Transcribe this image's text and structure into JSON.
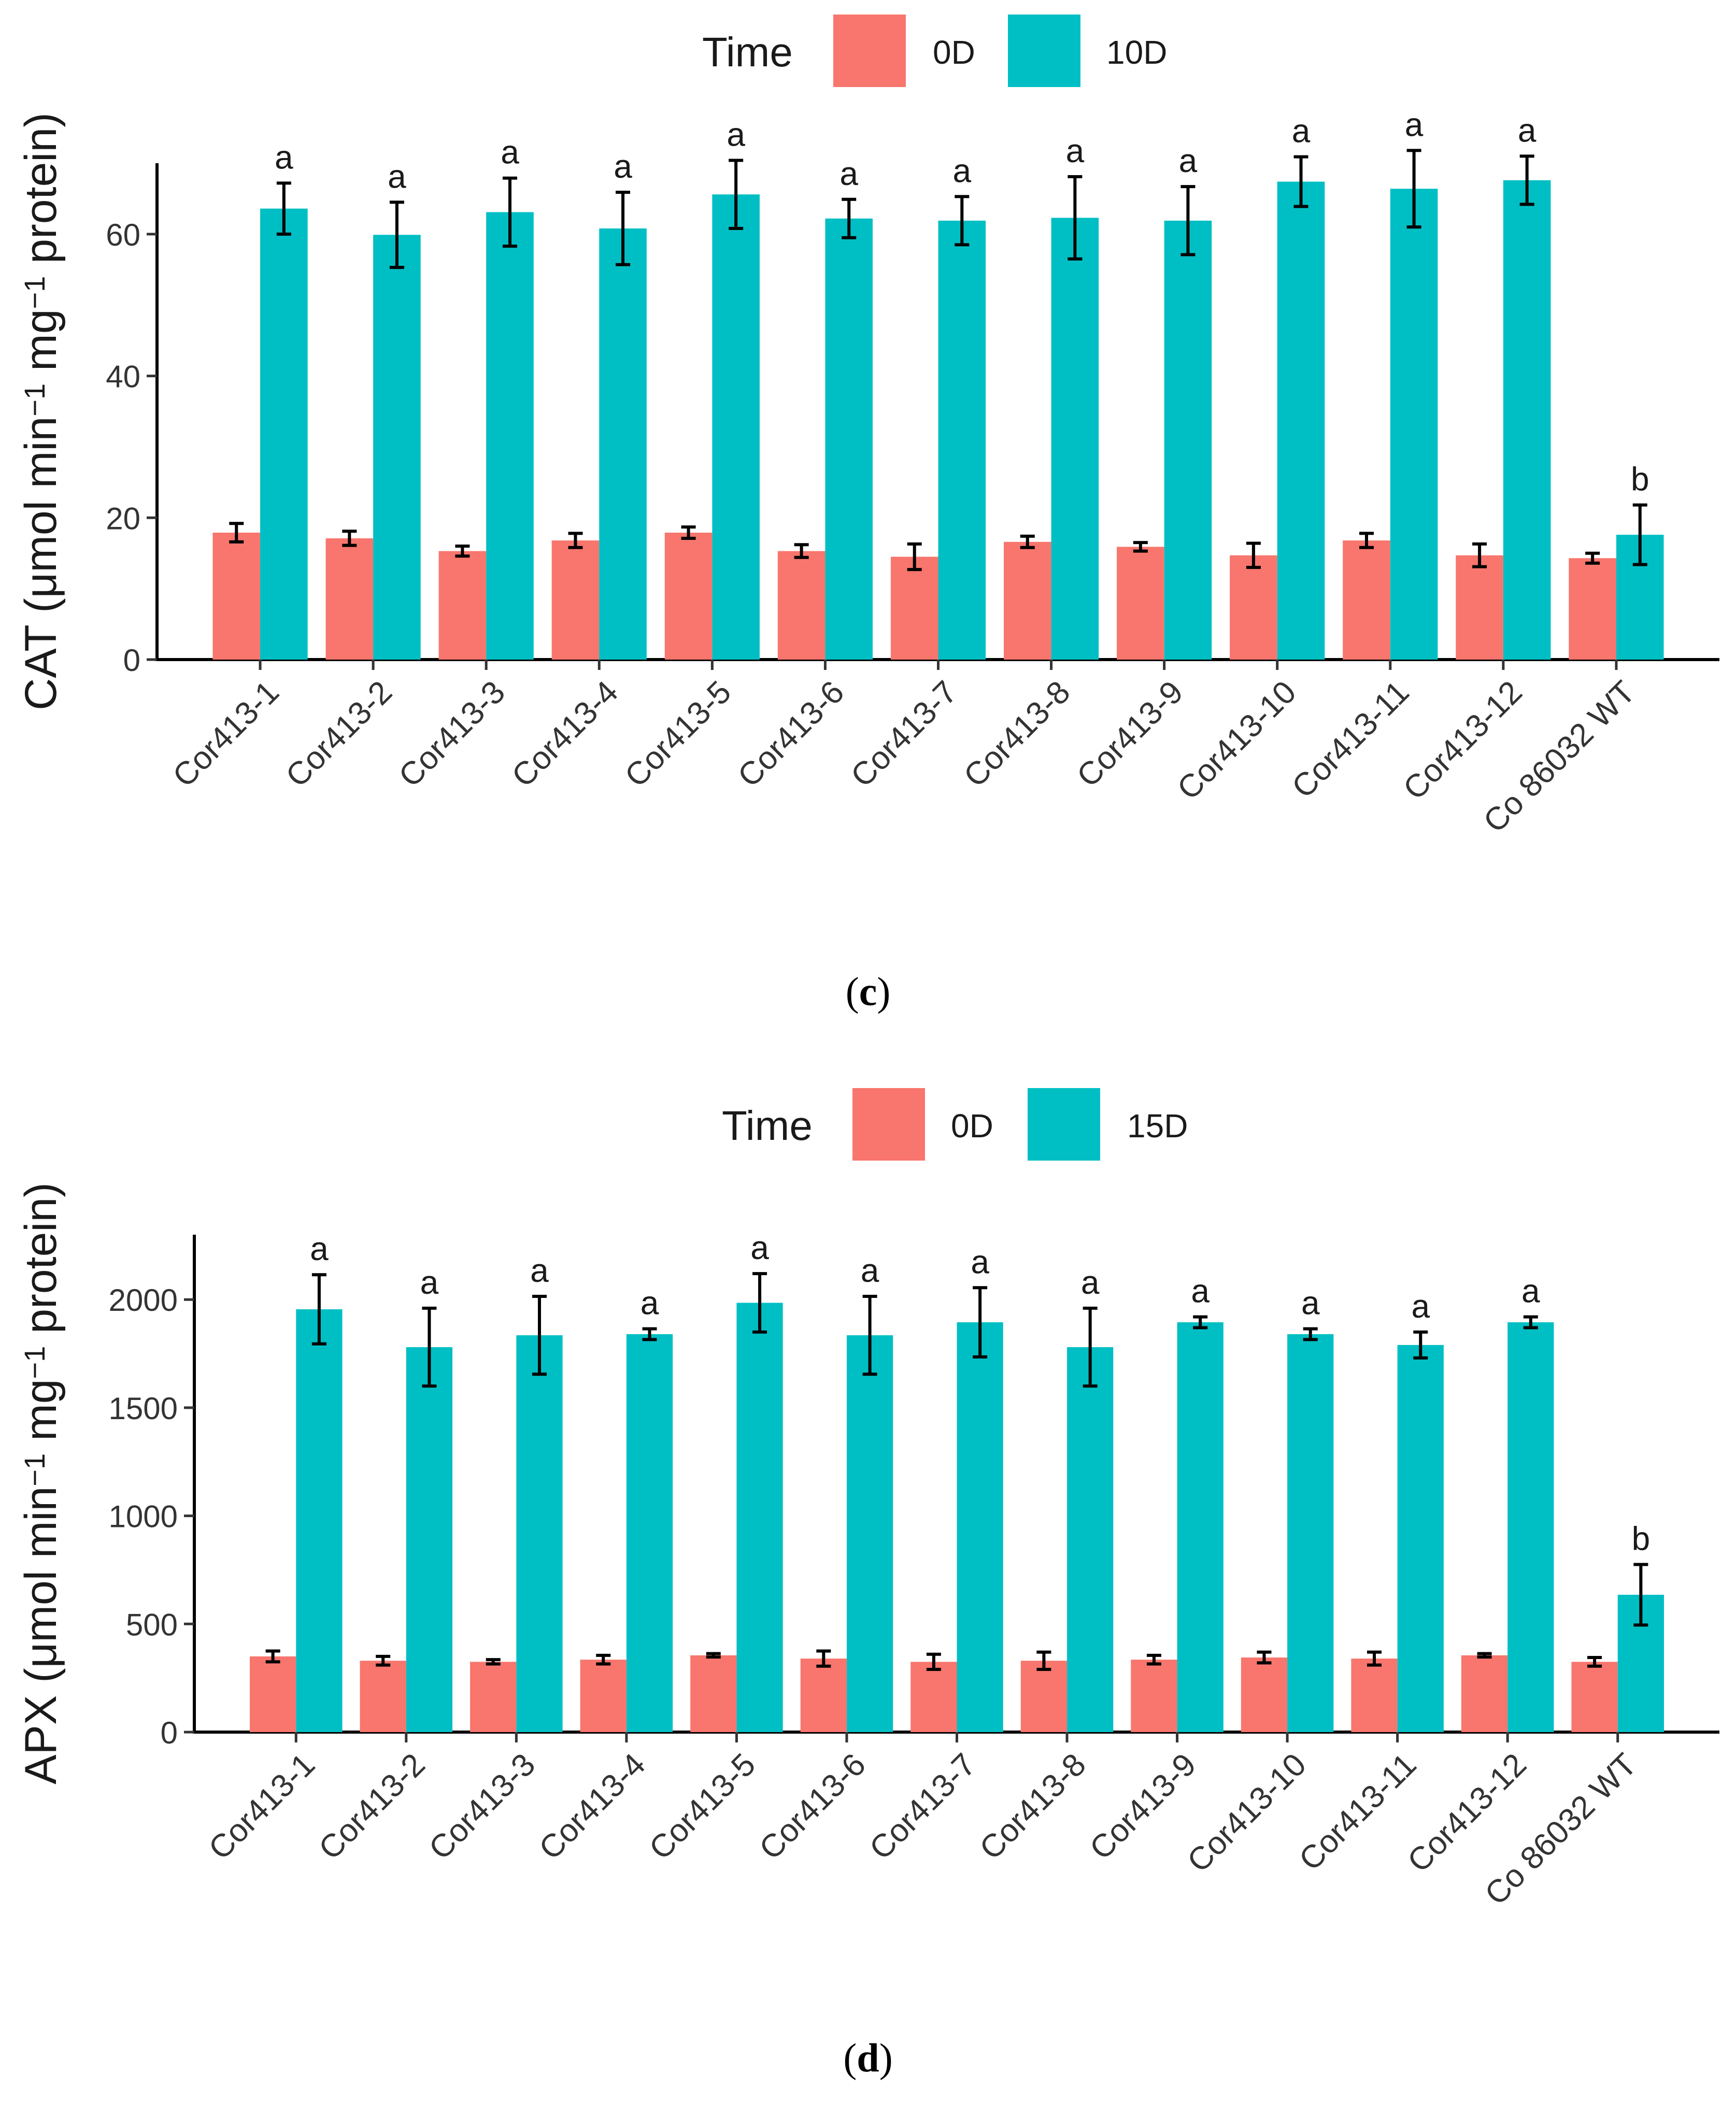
{
  "chart_data": [
    {
      "type": "bar",
      "panel_label": "(c)",
      "panel_letter": "c",
      "legend": {
        "title": "Time",
        "position": "top"
      },
      "ylabel": {
        "base": "CAT (μmol min",
        "sup1": "−1",
        "mid": " mg",
        "sup2": "−1",
        "end": " protein)"
      },
      "xlabel": "",
      "ylim": [
        0,
        70
      ],
      "yticks": [
        0,
        20,
        40,
        60
      ],
      "categories": [
        "Cor413-1",
        "Cor413-2",
        "Cor413-3",
        "Cor413-4",
        "Cor413-5",
        "Cor413-6",
        "Cor413-7",
        "Cor413-8",
        "Cor413-9",
        "Cor413-10",
        "Cor413-11",
        "Cor413-12",
        "Co 86032 WT"
      ],
      "series": [
        {
          "name": "0D",
          "color": "#F8766D",
          "values": [
            17.9,
            17.1,
            15.3,
            16.8,
            17.9,
            15.3,
            14.5,
            16.6,
            15.9,
            14.7,
            16.8,
            14.7,
            14.3
          ],
          "errors": [
            1.3,
            1.0,
            0.7,
            1.0,
            0.8,
            0.9,
            1.8,
            0.8,
            0.6,
            1.7,
            1.0,
            1.6,
            0.7
          ]
        },
        {
          "name": "10D",
          "color": "#00BFC4",
          "values": [
            63.6,
            59.9,
            63.1,
            60.8,
            65.6,
            62.2,
            61.9,
            62.3,
            61.9,
            67.4,
            66.4,
            67.6,
            17.6
          ],
          "errors": [
            3.6,
            4.6,
            4.8,
            5.1,
            4.8,
            2.7,
            3.4,
            5.8,
            4.8,
            3.5,
            5.4,
            3.4,
            4.2
          ]
        }
      ],
      "significance": [
        "a",
        "a",
        "a",
        "a",
        "a",
        "a",
        "a",
        "a",
        "a",
        "a",
        "a",
        "a",
        "b"
      ]
    },
    {
      "type": "bar",
      "panel_label": "(d)",
      "panel_letter": "d",
      "legend": {
        "title": "Time",
        "position": "top"
      },
      "ylabel": {
        "base": "APX (μmol min",
        "sup1": "−1",
        "mid": " mg",
        "sup2": "−1",
        "end": " protein)"
      },
      "xlabel": "",
      "ylim": [
        0,
        2300
      ],
      "yticks": [
        0,
        500,
        1000,
        1500,
        2000
      ],
      "categories": [
        "Cor413-1",
        "Cor413-2",
        "Cor413-3",
        "Cor413-4",
        "Cor413-5",
        "Cor413-6",
        "Cor413-7",
        "Cor413-8",
        "Cor413-9",
        "Cor413-10",
        "Cor413-11",
        "Cor413-12",
        "Co 86032 WT"
      ],
      "series": [
        {
          "name": "0D",
          "color": "#F8766D",
          "values": [
            350,
            330,
            325,
            335,
            355,
            340,
            325,
            330,
            335,
            345,
            340,
            355,
            325
          ],
          "errors": [
            25,
            20,
            10,
            20,
            8,
            35,
            35,
            40,
            20,
            25,
            30,
            8,
            20
          ]
        },
        {
          "name": "15D",
          "color": "#00BFC4",
          "values": [
            1955,
            1780,
            1835,
            1840,
            1985,
            1835,
            1895,
            1780,
            1895,
            1840,
            1790,
            1895,
            635
          ],
          "errors": [
            160,
            180,
            180,
            25,
            135,
            180,
            160,
            180,
            25,
            25,
            60,
            25,
            140
          ]
        }
      ],
      "significance": [
        "a",
        "a",
        "a",
        "a",
        "a",
        "a",
        "a",
        "a",
        "a",
        "a",
        "a",
        "a",
        "b"
      ]
    }
  ]
}
